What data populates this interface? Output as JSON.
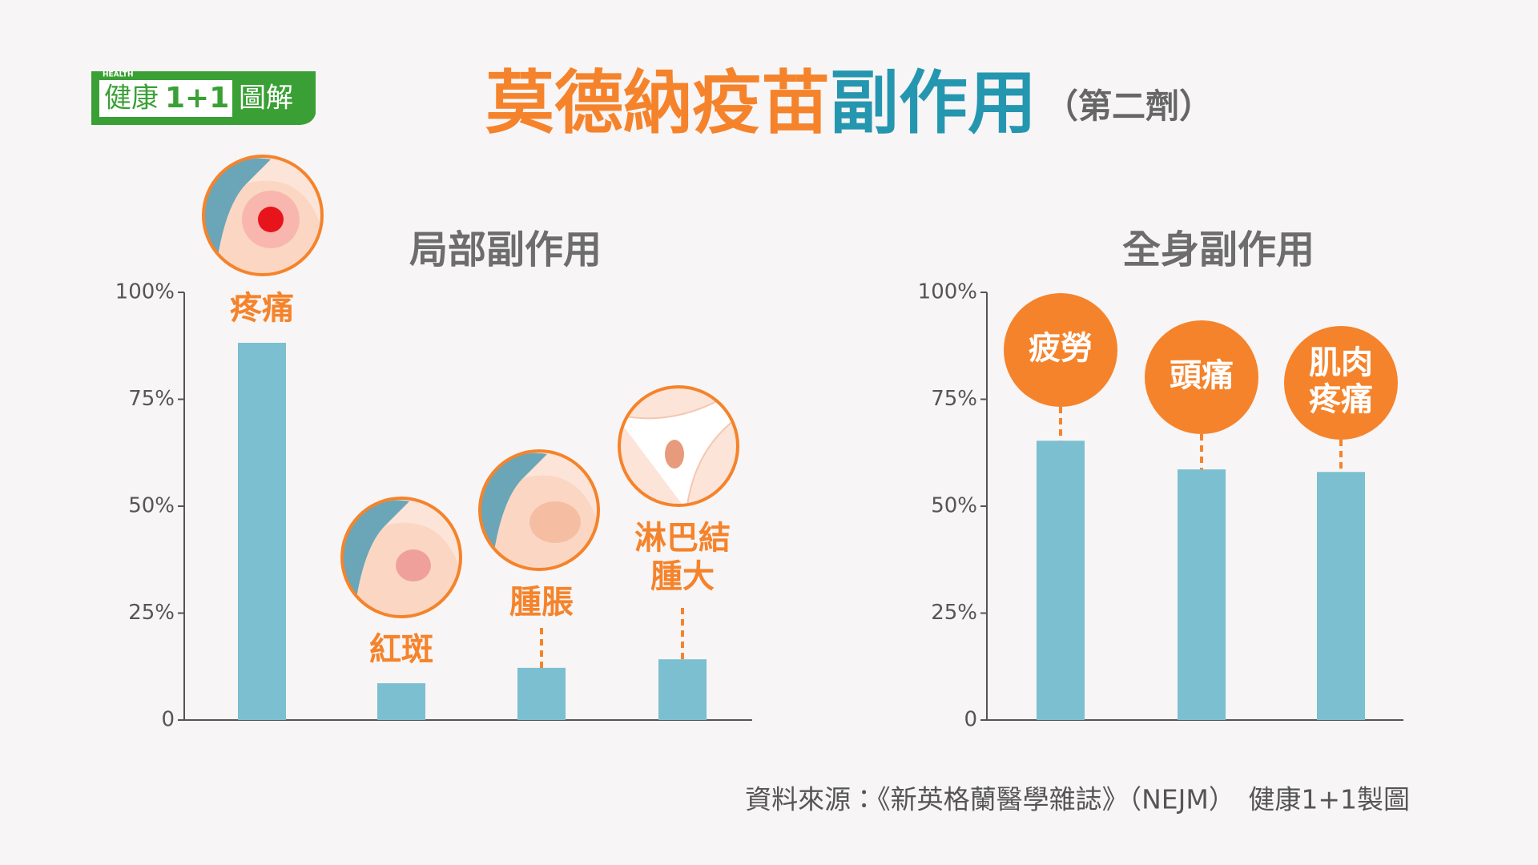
{
  "header": {
    "title": [
      "莫德納疫苗",
      "副作用"
    ],
    "subtitle": "（第二劑）",
    "logo": {
      "tag": "HEALTH",
      "brand": "健康",
      "number": "1+1",
      "label": "圖解"
    }
  },
  "chart_data": [
    {
      "type": "bar",
      "title": "局部副作用",
      "categories": [
        "疼痛",
        "紅斑",
        "腫脹",
        "淋巴結腫大"
      ],
      "values": [
        88.2,
        8.6,
        12.2,
        14.2
      ],
      "color": "#7bbfd0",
      "ylim": [
        0,
        100
      ],
      "yticks": [
        0,
        {
          "value": 25,
          "label": "25%"
        },
        {
          "value": 50,
          "label": "50%"
        },
        {
          "value": 75,
          "label": "75%"
        },
        {
          "value": 100,
          "label": "100%"
        }
      ]
    },
    {
      "type": "bar",
      "title": "全身副作用",
      "categories": [
        "疲勞",
        "頭痛",
        "肌肉疼痛"
      ],
      "values": [
        65.3,
        58.6,
        58.0
      ],
      "color": "#7bbfd0",
      "ylim": [
        0,
        100
      ],
      "yticks": [
        0,
        {
          "value": 25,
          "label": "25%"
        },
        {
          "value": 50,
          "label": "50%"
        },
        {
          "value": 75,
          "label": "75%"
        },
        {
          "value": 100,
          "label": "100%"
        }
      ]
    }
  ],
  "footer": {
    "source": "資料來源：《新英格蘭醫學雜誌》（NEJM）　健康1+1製圖"
  }
}
